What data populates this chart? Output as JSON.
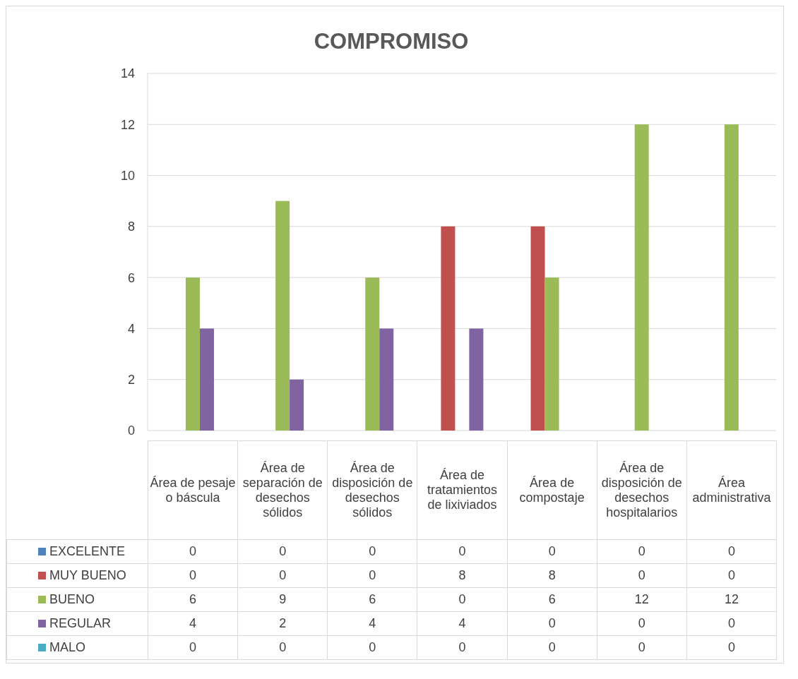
{
  "chart_data": {
    "type": "bar",
    "title": "COMPROMISO",
    "categories": [
      "Área de pesaje o báscula",
      "Área de separación de desechos sólidos",
      "Área de disposición de desechos sólidos",
      "Área de tratamientos de lixiviados",
      "Área de compostaje",
      "Área de disposición de desechos hospitalarios",
      "Área administrativa"
    ],
    "series": [
      {
        "name": "EXCELENTE",
        "color": "#4f81bd",
        "values": [
          0,
          0,
          0,
          0,
          0,
          0,
          0
        ]
      },
      {
        "name": "MUY BUENO",
        "color": "#c0504d",
        "values": [
          0,
          0,
          0,
          8,
          8,
          0,
          0
        ]
      },
      {
        "name": "BUENO",
        "color": "#9bbb59",
        "values": [
          6,
          9,
          6,
          0,
          6,
          12,
          12
        ]
      },
      {
        "name": "REGULAR",
        "color": "#8064a2",
        "values": [
          4,
          2,
          4,
          4,
          0,
          0,
          0
        ]
      },
      {
        "name": "MALO",
        "color": "#4bacc6",
        "values": [
          0,
          0,
          0,
          0,
          0,
          0,
          0
        ]
      }
    ],
    "ylim": [
      0,
      14
    ],
    "yticks": [
      0,
      2,
      4,
      6,
      8,
      10,
      12,
      14
    ],
    "grid": "y",
    "legend": "bottom",
    "data_labels": true
  }
}
